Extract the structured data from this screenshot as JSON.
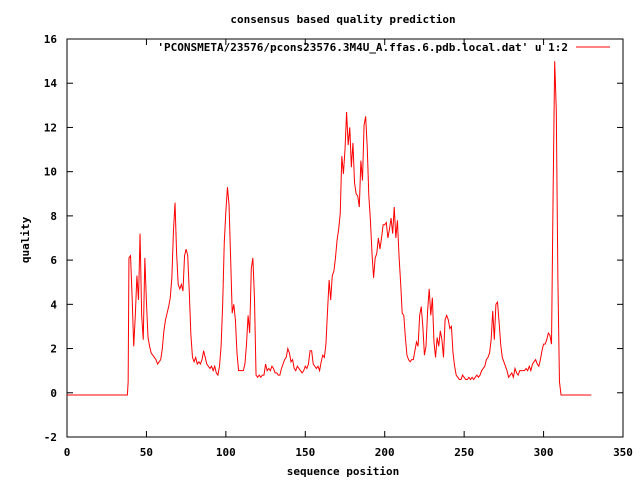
{
  "chart_data": {
    "type": "line",
    "title": "consensus based quality prediction",
    "xlabel": "sequence position",
    "ylabel": "quality",
    "xlim": [
      0,
      350
    ],
    "ylim": [
      -2,
      16
    ],
    "xticks": [
      0,
      50,
      100,
      150,
      200,
      250,
      300,
      350
    ],
    "yticks": [
      -2,
      0,
      2,
      4,
      6,
      8,
      10,
      12,
      14,
      16
    ],
    "grid": false,
    "legend_position": "top-right",
    "series": [
      {
        "name": "'PCONSMETA/23576/pcons23576.3M4U_A.ffas.6.pdb.local.dat' u 1:2",
        "color": "#ff0000",
        "points": [
          [
            0,
            -0.1
          ],
          [
            38,
            -0.1
          ],
          [
            38.5,
            0.5
          ],
          [
            39,
            6.1
          ],
          [
            40,
            6.2
          ],
          [
            41,
            4.3
          ],
          [
            42,
            2.1
          ],
          [
            43,
            3.5
          ],
          [
            44,
            5.3
          ],
          [
            45,
            4.2
          ],
          [
            46,
            7.2
          ],
          [
            47,
            3.5
          ],
          [
            48,
            2.4
          ],
          [
            49,
            6.1
          ],
          [
            50,
            4.1
          ],
          [
            51,
            2.5
          ],
          [
            52,
            2.1
          ],
          [
            53,
            1.8
          ],
          [
            54,
            1.7
          ],
          [
            55,
            1.6
          ],
          [
            56,
            1.5
          ],
          [
            57,
            1.3
          ],
          [
            58,
            1.4
          ],
          [
            59,
            1.5
          ],
          [
            60,
            2.0
          ],
          [
            61,
            2.8
          ],
          [
            62,
            3.3
          ],
          [
            63,
            3.6
          ],
          [
            64,
            3.9
          ],
          [
            65,
            4.3
          ],
          [
            66,
            5.2
          ],
          [
            67,
            7.3
          ],
          [
            68,
            8.6
          ],
          [
            69,
            6.3
          ],
          [
            70,
            4.9
          ],
          [
            71,
            4.7
          ],
          [
            72,
            4.9
          ],
          [
            73,
            4.6
          ],
          [
            74,
            6.2
          ],
          [
            75,
            6.5
          ],
          [
            76,
            6.2
          ],
          [
            77,
            4.5
          ],
          [
            78,
            2.6
          ],
          [
            79,
            1.6
          ],
          [
            80,
            1.4
          ],
          [
            81,
            1.6
          ],
          [
            82,
            1.3
          ],
          [
            83,
            1.4
          ],
          [
            84,
            1.3
          ],
          [
            85,
            1.5
          ],
          [
            86,
            1.9
          ],
          [
            87,
            1.6
          ],
          [
            88,
            1.3
          ],
          [
            89,
            1.2
          ],
          [
            90,
            1.1
          ],
          [
            91,
            1.2
          ],
          [
            92,
            1.0
          ],
          [
            93,
            1.2
          ],
          [
            94,
            0.9
          ],
          [
            95,
            0.8
          ],
          [
            96,
            1.2
          ],
          [
            97,
            2.1
          ],
          [
            98,
            4.0
          ],
          [
            99,
            6.8
          ],
          [
            100,
            8.2
          ],
          [
            101,
            9.3
          ],
          [
            102,
            8.5
          ],
          [
            103,
            6.1
          ],
          [
            104,
            3.6
          ],
          [
            105,
            4.0
          ],
          [
            106,
            3.3
          ],
          [
            107,
            1.8
          ],
          [
            108,
            1.0
          ],
          [
            109,
            1.0
          ],
          [
            110,
            1.0
          ],
          [
            111,
            1.0
          ],
          [
            112,
            1.3
          ],
          [
            113,
            2.2
          ],
          [
            114,
            3.5
          ],
          [
            115,
            2.7
          ],
          [
            116,
            5.6
          ],
          [
            117,
            6.1
          ],
          [
            118,
            4.3
          ],
          [
            119,
            0.8
          ],
          [
            120,
            0.7
          ],
          [
            121,
            0.8
          ],
          [
            122,
            0.7
          ],
          [
            123,
            0.8
          ],
          [
            124,
            0.8
          ],
          [
            125,
            1.3
          ],
          [
            126,
            1.0
          ],
          [
            127,
            1.1
          ],
          [
            128,
            1.0
          ],
          [
            129,
            1.2
          ],
          [
            130,
            1.1
          ],
          [
            131,
            0.9
          ],
          [
            132,
            0.9
          ],
          [
            133,
            0.8
          ],
          [
            134,
            0.8
          ],
          [
            135,
            1.1
          ],
          [
            136,
            1.3
          ],
          [
            137,
            1.5
          ],
          [
            138,
            1.6
          ],
          [
            139,
            2.0
          ],
          [
            140,
            1.8
          ],
          [
            141,
            1.4
          ],
          [
            142,
            1.5
          ],
          [
            143,
            1.1
          ],
          [
            144,
            1.0
          ],
          [
            145,
            1.2
          ],
          [
            146,
            1.1
          ],
          [
            147,
            1.0
          ],
          [
            148,
            0.9
          ],
          [
            149,
            1.0
          ],
          [
            150,
            1.2
          ],
          [
            151,
            1.1
          ],
          [
            152,
            1.3
          ],
          [
            153,
            1.9
          ],
          [
            154,
            1.9
          ],
          [
            155,
            1.3
          ],
          [
            156,
            1.2
          ],
          [
            157,
            1.1
          ],
          [
            158,
            1.2
          ],
          [
            159,
            1.0
          ],
          [
            160,
            1.4
          ],
          [
            161,
            1.7
          ],
          [
            162,
            1.6
          ],
          [
            163,
            2.2
          ],
          [
            164,
            3.7
          ],
          [
            165,
            5.1
          ],
          [
            166,
            4.2
          ],
          [
            167,
            5.3
          ],
          [
            168,
            5.5
          ],
          [
            169,
            6.1
          ],
          [
            170,
            6.9
          ],
          [
            171,
            7.4
          ],
          [
            172,
            8.1
          ],
          [
            173,
            10.7
          ],
          [
            174,
            9.9
          ],
          [
            175,
            11.0
          ],
          [
            176,
            12.7
          ],
          [
            177,
            11.2
          ],
          [
            178,
            12.0
          ],
          [
            179,
            10.2
          ],
          [
            180,
            11.3
          ],
          [
            181,
            9.5
          ],
          [
            182,
            9.0
          ],
          [
            183,
            8.9
          ],
          [
            184,
            8.4
          ],
          [
            185,
            10.5
          ],
          [
            186,
            9.6
          ],
          [
            187,
            12.1
          ],
          [
            188,
            12.5
          ],
          [
            189,
            11.1
          ],
          [
            190,
            8.9
          ],
          [
            191,
            7.8
          ],
          [
            192,
            6.3
          ],
          [
            193,
            5.2
          ],
          [
            194,
            6.1
          ],
          [
            195,
            6.3
          ],
          [
            196,
            7.0
          ],
          [
            197,
            6.5
          ],
          [
            198,
            7.0
          ],
          [
            199,
            7.6
          ],
          [
            200,
            7.6
          ],
          [
            201,
            7.7
          ],
          [
            202,
            7.0
          ],
          [
            203,
            7.4
          ],
          [
            204,
            7.9
          ],
          [
            205,
            7.2
          ],
          [
            206,
            8.4
          ],
          [
            207,
            7.0
          ],
          [
            208,
            7.8
          ],
          [
            209,
            6.2
          ],
          [
            210,
            5.0
          ],
          [
            211,
            3.6
          ],
          [
            212,
            3.5
          ],
          [
            213,
            2.5
          ],
          [
            214,
            1.7
          ],
          [
            215,
            1.5
          ],
          [
            216,
            1.4
          ],
          [
            217,
            1.5
          ],
          [
            218,
            1.5
          ],
          [
            219,
            1.9
          ],
          [
            220,
            2.3
          ],
          [
            221,
            2.1
          ],
          [
            222,
            3.5
          ],
          [
            223,
            3.9
          ],
          [
            224,
            3.0
          ],
          [
            225,
            1.7
          ],
          [
            226,
            2.1
          ],
          [
            227,
            3.7
          ],
          [
            228,
            4.7
          ],
          [
            229,
            3.5
          ],
          [
            230,
            4.3
          ],
          [
            231,
            2.3
          ],
          [
            232,
            1.6
          ],
          [
            233,
            2.5
          ],
          [
            234,
            2.1
          ],
          [
            235,
            2.8
          ],
          [
            236,
            2.4
          ],
          [
            237,
            1.6
          ],
          [
            238,
            3.3
          ],
          [
            239,
            3.5
          ],
          [
            240,
            3.3
          ],
          [
            241,
            2.9
          ],
          [
            242,
            3.0
          ],
          [
            243,
            1.8
          ],
          [
            244,
            1.2
          ],
          [
            245,
            0.8
          ],
          [
            246,
            0.7
          ],
          [
            247,
            0.6
          ],
          [
            248,
            0.6
          ],
          [
            249,
            0.8
          ],
          [
            250,
            0.7
          ],
          [
            251,
            0.6
          ],
          [
            252,
            0.6
          ],
          [
            253,
            0.7
          ],
          [
            254,
            0.6
          ],
          [
            255,
            0.7
          ],
          [
            256,
            0.6
          ],
          [
            257,
            0.7
          ],
          [
            258,
            0.8
          ],
          [
            259,
            0.7
          ],
          [
            260,
            0.8
          ],
          [
            261,
            1.0
          ],
          [
            262,
            1.1
          ],
          [
            263,
            1.2
          ],
          [
            264,
            1.5
          ],
          [
            265,
            1.6
          ],
          [
            266,
            1.8
          ],
          [
            267,
            2.4
          ],
          [
            268,
            3.7
          ],
          [
            269,
            2.4
          ],
          [
            270,
            4.0
          ],
          [
            271,
            4.1
          ],
          [
            272,
            3.2
          ],
          [
            273,
            2.2
          ],
          [
            274,
            1.6
          ],
          [
            275,
            1.4
          ],
          [
            276,
            1.2
          ],
          [
            277,
            1.0
          ],
          [
            278,
            0.7
          ],
          [
            279,
            0.8
          ],
          [
            280,
            0.9
          ],
          [
            281,
            0.7
          ],
          [
            282,
            1.1
          ],
          [
            283,
            0.9
          ],
          [
            284,
            0.8
          ],
          [
            285,
            1.0
          ],
          [
            286,
            1.0
          ],
          [
            287,
            1.0
          ],
          [
            288,
            1.0
          ],
          [
            289,
            1.1
          ],
          [
            290,
            1.0
          ],
          [
            291,
            1.2
          ],
          [
            292,
            1.0
          ],
          [
            293,
            1.3
          ],
          [
            294,
            1.4
          ],
          [
            295,
            1.5
          ],
          [
            296,
            1.3
          ],
          [
            297,
            1.2
          ],
          [
            298,
            1.5
          ],
          [
            299,
            1.9
          ],
          [
            300,
            2.2
          ],
          [
            301,
            2.2
          ],
          [
            302,
            2.4
          ],
          [
            303,
            2.7
          ],
          [
            304,
            2.6
          ],
          [
            305,
            2.2
          ],
          [
            306,
            9.0
          ],
          [
            307,
            15.0
          ],
          [
            308,
            12.8
          ],
          [
            309,
            5.2
          ],
          [
            310,
            0.5
          ],
          [
            311,
            -0.1
          ],
          [
            330,
            -0.1
          ]
        ]
      }
    ]
  }
}
